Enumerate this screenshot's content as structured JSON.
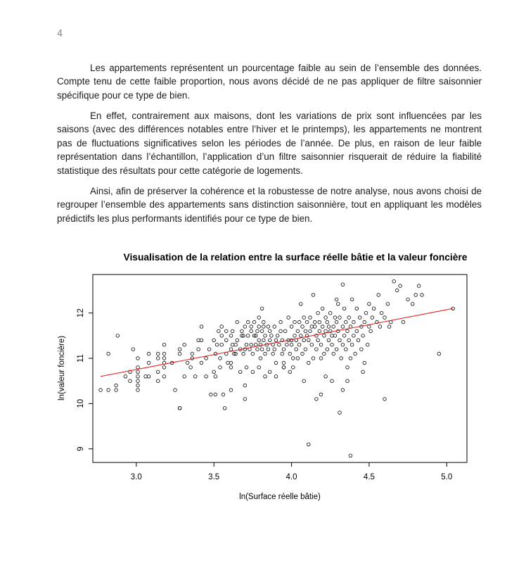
{
  "page": {
    "number": "4"
  },
  "paragraphs": [
    "Les appartements représentent un pourcentage faible au sein de l’ensemble des données. Compte tenu de cette faible proportion, nous avons décidé de ne pas appliquer de filtre saisonnier spécifique pour ce type de bien.",
    "En effet, contrairement aux maisons, dont les variations de prix sont influencées par les saisons (avec des différences notables entre l’hiver et le printemps), les appartements ne montrent pas de fluctuations significatives selon les périodes de l’année. De plus, en raison de leur faible représentation dans l’échantillon, l’application d’un filtre saisonnier risquerait de réduire la fiabilité statistique des résultats pour cette catégorie de logements.",
    "Ainsi, afin de préserver la cohérence et la robustesse de notre analyse, nous avons choisi de regrouper l’ensemble des appartements sans distinction saisonnière, tout en appliquant les modèles prédictifs les plus performants identifiés pour ce type de bien."
  ],
  "chart_data": {
    "type": "scatter",
    "title": "Visualisation de la relation entre la surface réelle bâtie et la valeur foncière",
    "xlabel": "ln(Surface réelle bâtie)",
    "ylabel": "ln(valeur foncière)",
    "xlim": [
      2.72,
      5.13
    ],
    "ylim": [
      8.7,
      12.85
    ],
    "xticks": [
      "3.0",
      "3.5",
      "4.0",
      "4.5",
      "5.0"
    ],
    "yticks": [
      "9",
      "10",
      "11",
      "12"
    ],
    "grid": false,
    "legend": "none",
    "colors": {
      "points": "#000000",
      "line": "#e41a1c"
    },
    "regression_line": {
      "x": [
        2.77,
        5.04
      ],
      "y": [
        10.6,
        12.1
      ]
    },
    "points": [
      [
        2.77,
        10.3
      ],
      [
        2.82,
        11.1
      ],
      [
        2.82,
        10.3
      ],
      [
        2.87,
        10.4
      ],
      [
        2.87,
        10.3
      ],
      [
        2.88,
        11.5
      ],
      [
        2.93,
        10.6
      ],
      [
        2.96,
        10.7
      ],
      [
        2.96,
        10.5
      ],
      [
        2.98,
        11.2
      ],
      [
        3.01,
        10.4
      ],
      [
        3.01,
        10.5
      ],
      [
        3.01,
        10.7
      ],
      [
        3.01,
        11.0
      ],
      [
        3.01,
        10.6
      ],
      [
        3.01,
        10.8
      ],
      [
        3.01,
        10.3
      ],
      [
        3.06,
        10.6
      ],
      [
        3.08,
        10.9
      ],
      [
        3.08,
        10.6
      ],
      [
        3.08,
        11.1
      ],
      [
        3.14,
        10.7
      ],
      [
        3.14,
        10.5
      ],
      [
        3.14,
        11.0
      ],
      [
        3.14,
        11.1
      ],
      [
        3.18,
        10.6
      ],
      [
        3.18,
        10.9
      ],
      [
        3.18,
        11.3
      ],
      [
        3.18,
        10.8
      ],
      [
        3.18,
        11.1
      ],
      [
        3.18,
        11.0
      ],
      [
        3.23,
        10.9
      ],
      [
        3.25,
        10.3
      ],
      [
        3.28,
        11.1
      ],
      [
        3.28,
        11.2
      ],
      [
        3.28,
        9.9
      ],
      [
        3.28,
        9.9
      ],
      [
        3.31,
        10.6
      ],
      [
        3.31,
        11.3
      ],
      [
        3.33,
        10.9
      ],
      [
        3.35,
        10.8
      ],
      [
        3.36,
        11.0
      ],
      [
        3.36,
        11.1
      ],
      [
        3.38,
        10.6
      ],
      [
        3.4,
        11.4
      ],
      [
        3.4,
        11.2
      ],
      [
        3.42,
        11.7
      ],
      [
        3.42,
        11.4
      ],
      [
        3.42,
        10.9
      ],
      [
        3.45,
        11.0
      ],
      [
        3.45,
        10.6
      ],
      [
        3.47,
        11.2
      ],
      [
        3.48,
        10.2
      ],
      [
        3.5,
        10.7
      ],
      [
        3.5,
        11.4
      ],
      [
        3.51,
        10.2
      ],
      [
        3.51,
        11.1
      ],
      [
        3.51,
        10.6
      ],
      [
        3.52,
        11.3
      ],
      [
        3.53,
        11.6
      ],
      [
        3.54,
        10.8
      ],
      [
        3.54,
        11.0
      ],
      [
        3.55,
        11.3
      ],
      [
        3.55,
        11.7
      ],
      [
        3.55,
        11.5
      ],
      [
        3.56,
        10.2
      ],
      [
        3.57,
        9.9
      ],
      [
        3.58,
        11.1
      ],
      [
        3.58,
        11.4
      ],
      [
        3.58,
        11.6
      ],
      [
        3.59,
        10.9
      ],
      [
        3.61,
        11.5
      ],
      [
        3.61,
        10.9
      ],
      [
        3.61,
        11.2
      ],
      [
        3.61,
        10.3
      ],
      [
        3.61,
        10.8
      ],
      [
        3.62,
        11.6
      ],
      [
        3.62,
        11.3
      ],
      [
        3.63,
        11.1
      ],
      [
        3.64,
        11.1
      ],
      [
        3.64,
        11.3
      ],
      [
        3.65,
        11.8
      ],
      [
        3.65,
        11.4
      ],
      [
        3.67,
        10.7
      ],
      [
        3.67,
        11.2
      ],
      [
        3.68,
        11.6
      ],
      [
        3.68,
        11.5
      ],
      [
        3.69,
        11.1
      ],
      [
        3.69,
        11.5
      ],
      [
        3.7,
        10.4
      ],
      [
        3.7,
        10.1
      ],
      [
        3.7,
        11.2
      ],
      [
        3.7,
        11.7
      ],
      [
        3.71,
        10.8
      ],
      [
        3.71,
        11.3
      ],
      [
        3.72,
        11.5
      ],
      [
        3.72,
        11.8
      ],
      [
        3.73,
        11.2
      ],
      [
        3.74,
        11.3
      ],
      [
        3.74,
        11.6
      ],
      [
        3.74,
        11.7
      ],
      [
        3.75,
        10.7
      ],
      [
        3.75,
        11.1
      ],
      [
        3.76,
        11.8
      ],
      [
        3.76,
        11.5
      ],
      [
        3.77,
        11.3
      ],
      [
        3.77,
        11.5
      ],
      [
        3.78,
        11.2
      ],
      [
        3.78,
        11.6
      ],
      [
        3.79,
        11.9
      ],
      [
        3.79,
        10.8
      ],
      [
        3.79,
        11.4
      ],
      [
        3.79,
        11.7
      ],
      [
        3.8,
        11.3
      ],
      [
        3.8,
        11.0
      ],
      [
        3.81,
        11.6
      ],
      [
        3.81,
        11.2
      ],
      [
        3.81,
        12.1
      ],
      [
        3.82,
        11.7
      ],
      [
        3.82,
        11.4
      ],
      [
        3.82,
        11.8
      ],
      [
        3.83,
        11.1
      ],
      [
        3.83,
        11.5
      ],
      [
        3.83,
        10.6
      ],
      [
        3.84,
        11.3
      ],
      [
        3.85,
        11.7
      ],
      [
        3.85,
        11.2
      ],
      [
        3.86,
        11.4
      ],
      [
        3.86,
        11.6
      ],
      [
        3.86,
        10.7
      ],
      [
        3.87,
        11.5
      ],
      [
        3.88,
        11.3
      ],
      [
        3.88,
        11.1
      ],
      [
        3.89,
        11.2
      ],
      [
        3.89,
        11.7
      ],
      [
        3.9,
        11.4
      ],
      [
        3.9,
        10.9
      ],
      [
        3.9,
        10.6
      ],
      [
        3.91,
        11.5
      ],
      [
        3.92,
        11.3
      ],
      [
        3.93,
        11.8
      ],
      [
        3.93,
        11.6
      ],
      [
        3.94,
        11.4
      ],
      [
        3.94,
        11.1
      ],
      [
        3.95,
        11.2
      ],
      [
        3.95,
        10.9
      ],
      [
        3.95,
        10.8
      ],
      [
        3.95,
        10.8
      ],
      [
        3.96,
        11.6
      ],
      [
        3.97,
        11.3
      ],
      [
        3.98,
        11.9
      ],
      [
        3.98,
        11.4
      ],
      [
        3.99,
        11.1
      ],
      [
        3.99,
        10.7
      ],
      [
        4.0,
        11.4
      ],
      [
        4.0,
        11.3
      ],
      [
        4.0,
        11.7
      ],
      [
        4.01,
        11.0
      ],
      [
        4.01,
        10.8
      ],
      [
        4.02,
        11.5
      ],
      [
        4.02,
        11.8
      ],
      [
        4.03,
        11.4
      ],
      [
        4.03,
        11.2
      ],
      [
        4.04,
        11.6
      ],
      [
        4.04,
        11.0
      ],
      [
        4.05,
        11.8
      ],
      [
        4.05,
        11.3
      ],
      [
        4.06,
        11.5
      ],
      [
        4.06,
        12.2
      ],
      [
        4.07,
        11.7
      ],
      [
        4.07,
        11.1
      ],
      [
        4.08,
        11.4
      ],
      [
        4.08,
        11.9
      ],
      [
        4.08,
        10.5
      ],
      [
        4.09,
        11.6
      ],
      [
        4.09,
        11.2
      ],
      [
        4.1,
        11.8
      ],
      [
        4.1,
        11.5
      ],
      [
        4.11,
        11.4
      ],
      [
        4.11,
        10.9
      ],
      [
        4.12,
        11.6
      ],
      [
        4.12,
        11.9
      ],
      [
        4.13,
        11.3
      ],
      [
        4.13,
        11.7
      ],
      [
        4.14,
        11.0
      ],
      [
        4.15,
        11.7
      ],
      [
        4.15,
        11.8
      ],
      [
        4.16,
        11.2
      ],
      [
        4.16,
        11.5
      ],
      [
        4.17,
        11.4
      ],
      [
        4.17,
        12.0
      ],
      [
        4.18,
        11.8
      ],
      [
        4.18,
        11.6
      ],
      [
        4.19,
        11.3
      ],
      [
        4.19,
        11.0
      ],
      [
        4.2,
        11.7
      ],
      [
        4.2,
        12.1
      ],
      [
        4.21,
        11.5
      ],
      [
        4.21,
        11.1
      ],
      [
        4.22,
        11.9
      ],
      [
        4.22,
        11.6
      ],
      [
        4.23,
        11.2
      ],
      [
        4.23,
        11.8
      ],
      [
        4.24,
        11.7
      ],
      [
        4.24,
        11.4
      ],
      [
        4.25,
        12.0
      ],
      [
        4.25,
        11.6
      ],
      [
        4.26,
        11.3
      ],
      [
        4.26,
        11.5
      ],
      [
        4.27,
        11.1
      ],
      [
        4.27,
        11.7
      ],
      [
        4.28,
        11.9
      ],
      [
        4.28,
        11.5
      ],
      [
        4.29,
        11.2
      ],
      [
        4.29,
        11.8
      ],
      [
        4.3,
        12.2
      ],
      [
        4.3,
        11.6
      ],
      [
        4.31,
        11.4
      ],
      [
        4.31,
        11.9
      ],
      [
        4.32,
        11.0
      ],
      [
        4.33,
        11.7
      ],
      [
        4.33,
        11.3
      ],
      [
        4.34,
        12.1
      ],
      [
        4.34,
        11.5
      ],
      [
        4.35,
        11.8
      ],
      [
        4.35,
        11.2
      ],
      [
        4.36,
        11.6
      ],
      [
        4.36,
        10.8
      ],
      [
        4.37,
        11.9
      ],
      [
        4.37,
        11.4
      ],
      [
        4.38,
        11.7
      ],
      [
        4.38,
        11.0
      ],
      [
        4.39,
        12.3
      ],
      [
        4.39,
        11.3
      ],
      [
        4.4,
        11.5
      ],
      [
        4.4,
        11.8
      ],
      [
        4.41,
        11.1
      ],
      [
        4.42,
        11.6
      ],
      [
        4.42,
        12.1
      ],
      [
        4.43,
        11.4
      ],
      [
        4.44,
        11.9
      ],
      [
        4.45,
        11.2
      ],
      [
        4.45,
        11.7
      ],
      [
        4.46,
        11.5
      ],
      [
        4.47,
        11.8
      ],
      [
        4.48,
        12.0
      ],
      [
        4.49,
        11.3
      ],
      [
        4.5,
        11.7
      ],
      [
        4.5,
        12.2
      ],
      [
        4.51,
        11.6
      ],
      [
        4.52,
        11.9
      ],
      [
        4.53,
        12.1
      ],
      [
        4.55,
        11.8
      ],
      [
        4.56,
        12.4
      ],
      [
        4.57,
        11.7
      ],
      [
        4.58,
        12.0
      ],
      [
        4.6,
        11.9
      ],
      [
        4.62,
        12.2
      ],
      [
        4.63,
        11.7
      ],
      [
        4.64,
        11.8
      ],
      [
        4.66,
        12.7
      ],
      [
        4.68,
        12.5
      ],
      [
        4.7,
        12.6
      ],
      [
        4.72,
        11.8
      ],
      [
        4.75,
        12.3
      ],
      [
        4.78,
        12.2
      ],
      [
        4.8,
        12.4
      ],
      [
        4.82,
        12.6
      ],
      [
        4.84,
        12.4
      ],
      [
        4.95,
        11.1
      ],
      [
        5.04,
        12.1
      ],
      [
        4.11,
        9.1
      ],
      [
        4.38,
        8.85
      ],
      [
        4.31,
        9.8
      ],
      [
        4.6,
        10.1
      ],
      [
        4.33,
        10.3
      ],
      [
        4.26,
        10.5
      ],
      [
        4.19,
        10.2
      ],
      [
        4.16,
        10.1
      ],
      [
        4.46,
        10.7
      ],
      [
        4.36,
        10.5
      ],
      [
        4.22,
        10.6
      ],
      [
        4.47,
        10.9
      ],
      [
        4.33,
        12.63
      ],
      [
        4.14,
        12.4
      ],
      [
        4.29,
        12.3
      ]
    ]
  }
}
